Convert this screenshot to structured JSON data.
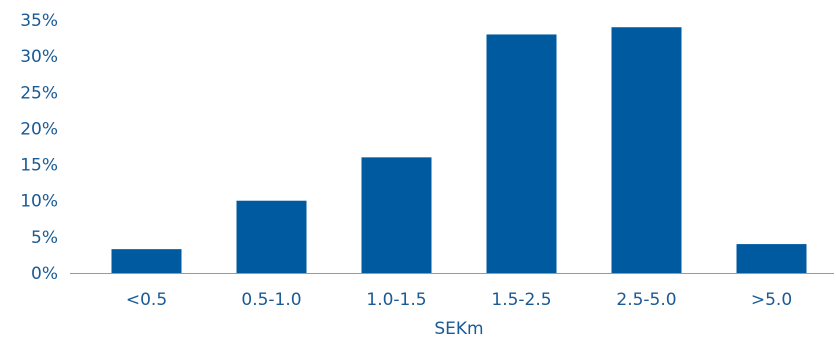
{
  "chart_data": {
    "type": "bar",
    "title": "",
    "xlabel": "SEKm",
    "ylabel": "",
    "categories": [
      "<0.5",
      "0.5-1.0",
      "1.0-1.5",
      "1.5-2.5",
      "2.5-5.0",
      ">5.0"
    ],
    "series": [
      {
        "values": [
          3.3,
          10,
          16,
          33,
          34,
          4
        ]
      }
    ],
    "ylim": [
      0,
      35
    ],
    "y_ticks": [
      "0%",
      "5%",
      "10%",
      "15%",
      "20%",
      "25%",
      "30%",
      "35%"
    ],
    "grid": false,
    "bar_color": "#005aa0",
    "axis_color": "#1a5a96"
  }
}
